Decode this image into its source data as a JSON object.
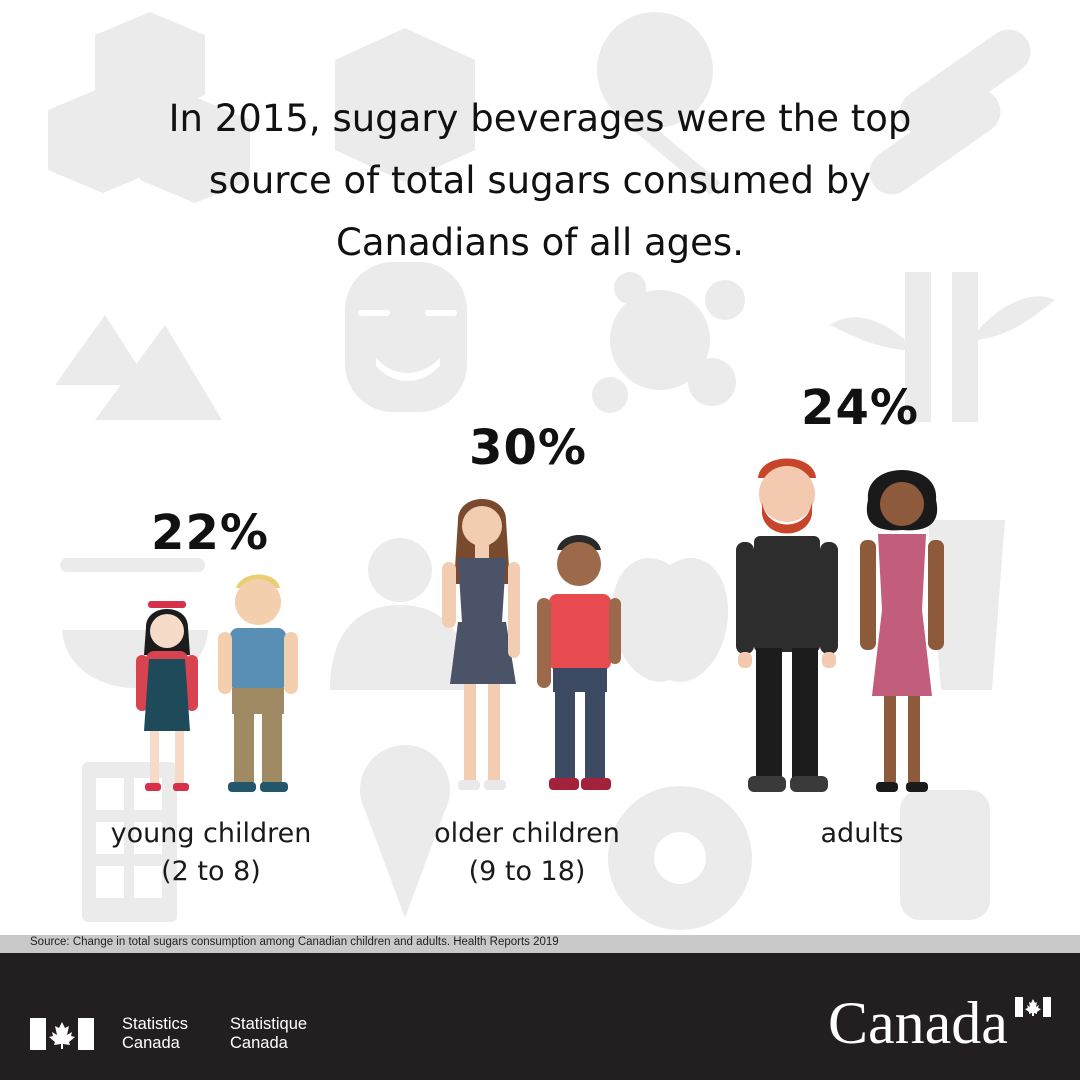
{
  "title_lines": [
    "In 2015, sugary beverages were the top",
    "source of total sugars consumed by",
    "Canadians of all ages."
  ],
  "chart_data": {
    "type": "table",
    "categories": [
      "young children (2 to 8)",
      "older children (9 to 18)",
      "adults"
    ],
    "values": [
      22,
      30,
      24
    ],
    "value_labels": [
      "22%",
      "30%",
      "24%"
    ],
    "category_labels": [
      [
        "young children",
        "(2 to 8)"
      ],
      [
        "older children",
        "(9 to 18)"
      ],
      [
        "adults"
      ]
    ]
  },
  "source": "Source: Change in total sugars consumption among Canadian children and adults. Health Reports 2019",
  "footer": {
    "signature_en": [
      "Statistics",
      "Canada"
    ],
    "signature_fr": [
      "Statistique",
      "Canada"
    ],
    "wordmark": "Canada"
  },
  "colors": {
    "background_icons": "#e9e9e9",
    "footer": "#231f20",
    "source_bar": "#c9c9c9",
    "canada_red": "#ff0000"
  }
}
